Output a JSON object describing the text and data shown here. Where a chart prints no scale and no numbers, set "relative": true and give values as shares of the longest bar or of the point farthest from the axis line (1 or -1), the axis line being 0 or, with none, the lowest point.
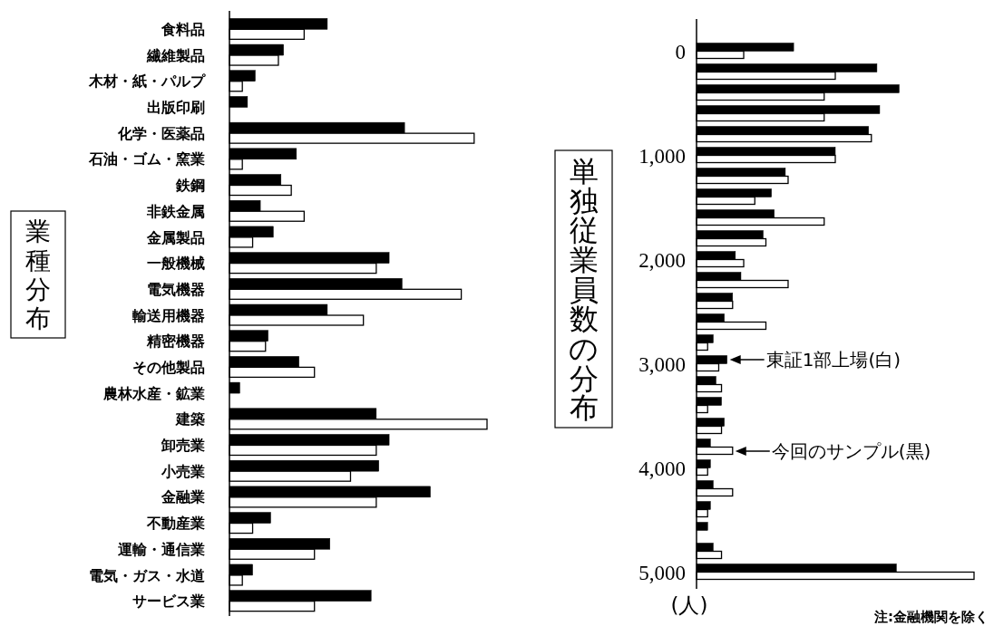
{
  "chart_data": [
    {
      "type": "bar",
      "orientation": "horizontal",
      "relative": true,
      "ylabel": "業種分布",
      "categories": [
        "食料品",
        "繊維製品",
        "木材・紙・パルプ",
        "出版印刷",
        "化学・医薬品",
        "石油・ゴム・窯業",
        "鉄鋼",
        "非鉄金属",
        "金属製品",
        "一般機械",
        "電気機器",
        "輸送用機器",
        "精密機器",
        "その他製品",
        "農林水産・鉱業",
        "建築",
        "卸売業",
        "小売業",
        "金融業",
        "不動産業",
        "運輸・通信業",
        "電気・ガス・水道",
        "サービス業"
      ],
      "series": [
        {
          "color": "#000000",
          "values": [
            0.38,
            0.21,
            0.1,
            0.07,
            0.68,
            0.26,
            0.2,
            0.12,
            0.17,
            0.62,
            0.67,
            0.38,
            0.15,
            0.27,
            0.04,
            0.57,
            0.62,
            0.58,
            0.78,
            0.16,
            0.39,
            0.09,
            0.55
          ]
        },
        {
          "color": "#ffffff",
          "values": [
            0.29,
            0.19,
            0.05,
            0,
            0.95,
            0.05,
            0.24,
            0.29,
            0.09,
            0.57,
            0.9,
            0.52,
            0.14,
            0.33,
            0,
            1,
            0.57,
            0.47,
            0.57,
            0.09,
            0.33,
            0.05,
            0.33
          ]
        }
      ]
    },
    {
      "type": "bar",
      "orientation": "horizontal",
      "relative": true,
      "ylabel": "単独従業員数の分布",
      "categories": [
        "0",
        null,
        null,
        null,
        null,
        "1,000",
        null,
        null,
        null,
        null,
        "2,000",
        null,
        null,
        null,
        null,
        "3,000",
        null,
        null,
        null,
        null,
        "4,000",
        null,
        null,
        null,
        null,
        "5,000"
      ],
      "series": [
        {
          "color": "#000000",
          "values": [
            0.35,
            0.65,
            0.73,
            0.66,
            0.62,
            0.5,
            0.32,
            0.27,
            0.28,
            0.24,
            0.14,
            0.16,
            0.13,
            0.1,
            0.06,
            0.11,
            0.07,
            0.09,
            0.1,
            0.05,
            0.05,
            0.06,
            0.05,
            0.04,
            0.06,
            0.72
          ]
        },
        {
          "color": "#ffffff",
          "values": [
            0.17,
            0.5,
            0.46,
            0.46,
            0.63,
            0.5,
            0.33,
            0.21,
            0.46,
            0.25,
            0.17,
            0.33,
            0.13,
            0.25,
            0.04,
            0.08,
            0.09,
            0.04,
            0.09,
            0.13,
            0.04,
            0.13,
            0.04,
            0,
            0.09,
            1
          ]
        }
      ],
      "annotations": [
        "東証1部上場(白)",
        "今回のサンプル(黒)",
        "(人)",
        "注:金融機関を除く"
      ]
    }
  ]
}
